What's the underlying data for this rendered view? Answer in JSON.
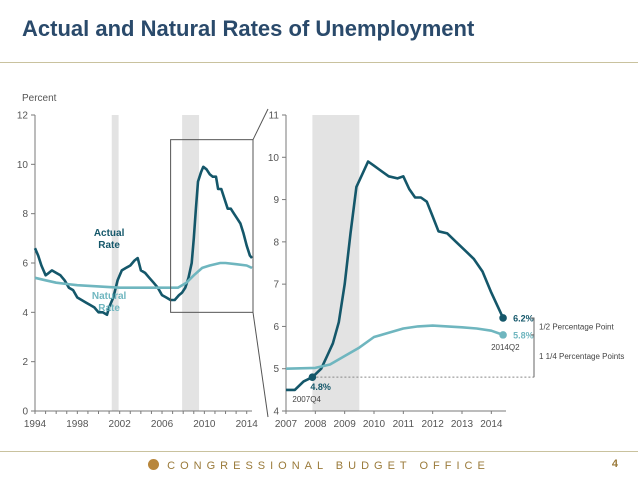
{
  "slide": {
    "title": "Actual and Natural Rates of Unemployment",
    "footer": "CONGRESSIONAL BUDGET OFFICE",
    "page_number": "4"
  },
  "colors": {
    "actual": "#14576a",
    "natural": "#6fb6bf",
    "recession": "#e3e3e3",
    "axis": "#7a7a7a"
  },
  "chart_data": [
    {
      "type": "line",
      "id": "overview",
      "ylabel": "Percent",
      "xlim": [
        1994,
        2014.5
      ],
      "ylim": [
        0,
        12
      ],
      "x_ticks": [
        "1994",
        "1998",
        "2002",
        "2006",
        "2010",
        "2014"
      ],
      "y_ticks": [
        "0",
        "2",
        "4",
        "6",
        "8",
        "10",
        "12"
      ],
      "recessions": [
        [
          2001.25,
          2001.9
        ],
        [
          2007.9,
          2009.5
        ]
      ],
      "series": [
        {
          "name": "Actual Rate",
          "points": [
            [
              1994.0,
              6.6
            ],
            [
              1994.3,
              6.3
            ],
            [
              1994.6,
              5.9
            ],
            [
              1995.0,
              5.5
            ],
            [
              1995.3,
              5.6
            ],
            [
              1995.6,
              5.7
            ],
            [
              1996.0,
              5.6
            ],
            [
              1996.4,
              5.5
            ],
            [
              1996.8,
              5.3
            ],
            [
              1997.2,
              5.0
            ],
            [
              1997.6,
              4.9
            ],
            [
              1998.0,
              4.6
            ],
            [
              1998.4,
              4.5
            ],
            [
              1998.8,
              4.4
            ],
            [
              1999.2,
              4.3
            ],
            [
              1999.6,
              4.2
            ],
            [
              2000.0,
              4.0
            ],
            [
              2000.4,
              4.0
            ],
            [
              2000.8,
              3.9
            ],
            [
              2001.0,
              4.2
            ],
            [
              2001.4,
              4.6
            ],
            [
              2001.8,
              5.3
            ],
            [
              2002.2,
              5.7
            ],
            [
              2002.6,
              5.8
            ],
            [
              2003.0,
              5.9
            ],
            [
              2003.4,
              6.1
            ],
            [
              2003.7,
              6.2
            ],
            [
              2004.0,
              5.7
            ],
            [
              2004.4,
              5.6
            ],
            [
              2004.8,
              5.4
            ],
            [
              2005.2,
              5.2
            ],
            [
              2005.6,
              5.0
            ],
            [
              2006.0,
              4.7
            ],
            [
              2006.4,
              4.6
            ],
            [
              2006.8,
              4.5
            ],
            [
              2007.2,
              4.5
            ],
            [
              2007.6,
              4.7
            ],
            [
              2007.9,
              4.8
            ],
            [
              2008.2,
              5.0
            ],
            [
              2008.5,
              5.4
            ],
            [
              2008.8,
              6.0
            ],
            [
              2009.0,
              7.0
            ],
            [
              2009.2,
              8.2
            ],
            [
              2009.4,
              9.3
            ],
            [
              2009.7,
              9.7
            ],
            [
              2009.9,
              9.9
            ],
            [
              2010.2,
              9.8
            ],
            [
              2010.5,
              9.6
            ],
            [
              2010.8,
              9.5
            ],
            [
              2011.1,
              9.5
            ],
            [
              2011.3,
              9.0
            ],
            [
              2011.6,
              9.0
            ],
            [
              2011.9,
              8.6
            ],
            [
              2012.2,
              8.2
            ],
            [
              2012.5,
              8.2
            ],
            [
              2012.8,
              8.0
            ],
            [
              2013.1,
              7.8
            ],
            [
              2013.4,
              7.6
            ],
            [
              2013.7,
              7.2
            ],
            [
              2014.0,
              6.7
            ],
            [
              2014.3,
              6.3
            ],
            [
              2014.5,
              6.2
            ]
          ]
        },
        {
          "name": "Natural Rate",
          "points": [
            [
              1994.0,
              5.4
            ],
            [
              1995.0,
              5.3
            ],
            [
              1996.0,
              5.2
            ],
            [
              1997.0,
              5.15
            ],
            [
              1998.0,
              5.1
            ],
            [
              2000.0,
              5.05
            ],
            [
              2002.0,
              5.0
            ],
            [
              2004.0,
              5.0
            ],
            [
              2006.0,
              5.0
            ],
            [
              2007.5,
              5.0
            ],
            [
              2008.3,
              5.2
            ],
            [
              2009.0,
              5.5
            ],
            [
              2009.8,
              5.8
            ],
            [
              2010.5,
              5.9
            ],
            [
              2011.5,
              6.0
            ],
            [
              2012.0,
              6.0
            ],
            [
              2013.0,
              5.95
            ],
            [
              2014.0,
              5.9
            ],
            [
              2014.5,
              5.8
            ]
          ]
        }
      ],
      "annotations": [
        {
          "text": "Actual",
          "text2": "Rate",
          "x": 2001.0,
          "y": 7.1
        },
        {
          "text": "Natural",
          "text2": "Rate",
          "x": 2001.0,
          "y": 4.55
        }
      ],
      "zoom_box": {
        "x": [
          2007.0,
          2014.5
        ],
        "y": [
          4.0,
          11.0
        ]
      }
    },
    {
      "type": "line",
      "id": "zoom",
      "xlim": [
        2007,
        2014.5
      ],
      "ylim": [
        4,
        11
      ],
      "x_ticks": [
        "2007",
        "2008",
        "2009",
        "2010",
        "2011",
        "2012",
        "2013",
        "2014"
      ],
      "y_ticks": [
        "4",
        "5",
        "6",
        "7",
        "8",
        "9",
        "10",
        "11"
      ],
      "recessions": [
        [
          2007.9,
          2009.5
        ]
      ],
      "series": [
        {
          "name": "Actual Rate",
          "points": [
            [
              2007.0,
              4.5
            ],
            [
              2007.3,
              4.5
            ],
            [
              2007.6,
              4.7
            ],
            [
              2007.9,
              4.8
            ],
            [
              2008.2,
              5.0
            ],
            [
              2008.4,
              5.3
            ],
            [
              2008.6,
              5.6
            ],
            [
              2008.8,
              6.1
            ],
            [
              2009.0,
              7.0
            ],
            [
              2009.2,
              8.2
            ],
            [
              2009.4,
              9.3
            ],
            [
              2009.6,
              9.6
            ],
            [
              2009.8,
              9.9
            ],
            [
              2010.0,
              9.8
            ],
            [
              2010.2,
              9.7
            ],
            [
              2010.5,
              9.55
            ],
            [
              2010.8,
              9.5
            ],
            [
              2011.0,
              9.55
            ],
            [
              2011.2,
              9.25
            ],
            [
              2011.4,
              9.05
            ],
            [
              2011.6,
              9.05
            ],
            [
              2011.8,
              8.95
            ],
            [
              2012.0,
              8.6
            ],
            [
              2012.2,
              8.25
            ],
            [
              2012.5,
              8.2
            ],
            [
              2012.8,
              8.0
            ],
            [
              2013.1,
              7.8
            ],
            [
              2013.4,
              7.6
            ],
            [
              2013.7,
              7.3
            ],
            [
              2014.0,
              6.8
            ],
            [
              2014.2,
              6.5
            ],
            [
              2014.4,
              6.2
            ]
          ]
        },
        {
          "name": "Natural Rate",
          "points": [
            [
              2007.0,
              5.0
            ],
            [
              2008.0,
              5.02
            ],
            [
              2008.5,
              5.1
            ],
            [
              2009.0,
              5.3
            ],
            [
              2009.5,
              5.5
            ],
            [
              2010.0,
              5.75
            ],
            [
              2010.5,
              5.85
            ],
            [
              2011.0,
              5.95
            ],
            [
              2011.5,
              6.0
            ],
            [
              2012.0,
              6.02
            ],
            [
              2012.5,
              6.0
            ],
            [
              2013.0,
              5.98
            ],
            [
              2013.5,
              5.95
            ],
            [
              2014.0,
              5.9
            ],
            [
              2014.4,
              5.8
            ]
          ]
        }
      ],
      "markers": [
        {
          "series": "Actual Rate",
          "x": 2007.9,
          "y": 4.8,
          "label": "4.8%",
          "sublabel": "2007Q4"
        },
        {
          "series": "Actual Rate",
          "x": 2014.4,
          "y": 6.2,
          "label": "6.2%"
        },
        {
          "series": "Natural Rate",
          "x": 2014.4,
          "y": 5.8,
          "label": "5.8%",
          "sublabel": "2014Q2"
        }
      ],
      "reference_line": {
        "y": 4.8,
        "from_x": 2007.9
      },
      "brackets": [
        {
          "label": "1/2 Percentage Point",
          "y_from": 5.8,
          "y_to": 6.2
        },
        {
          "label": "1 1/4 Percentage Points",
          "y_from": 4.8,
          "y_to": 6.2
        }
      ]
    }
  ]
}
